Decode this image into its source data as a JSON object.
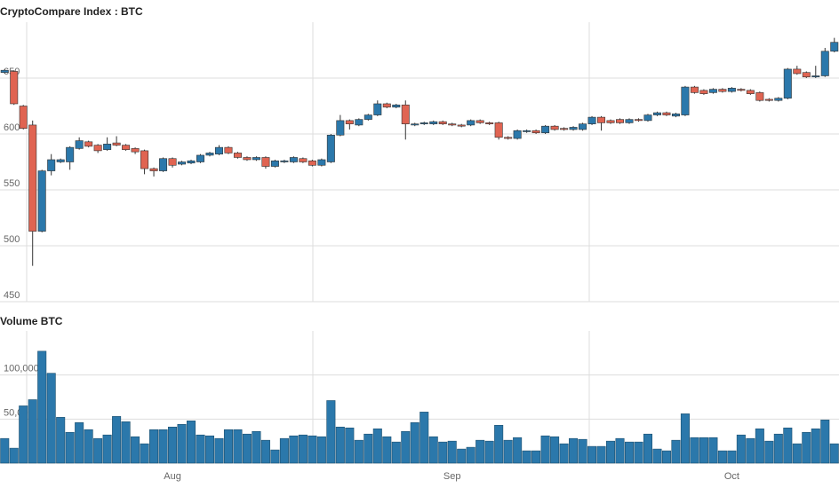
{
  "chart_data": [
    {
      "type": "candlestick",
      "title": "CryptoCompare Index : BTC",
      "open": [
        655,
        656,
        625,
        608,
        513,
        567,
        575,
        575,
        587,
        593,
        590,
        586,
        592,
        590,
        587,
        585,
        569,
        567,
        578,
        573,
        574,
        575,
        581,
        582,
        588,
        583,
        579,
        577,
        579,
        571,
        575,
        575,
        578,
        576,
        572,
        575,
        599,
        612,
        608,
        613,
        617,
        627,
        624,
        626,
        608,
        609,
        609,
        611,
        609,
        608,
        608,
        612,
        610,
        610,
        597,
        596,
        602,
        603,
        601,
        607,
        605,
        604,
        604,
        609,
        615,
        612,
        613,
        610,
        613,
        612,
        617,
        619,
        616,
        617,
        642,
        639,
        637,
        640,
        638,
        640,
        639,
        637,
        631,
        630,
        632,
        658,
        655,
        651,
        652,
        674
      ],
      "high": [
        658,
        657,
        626,
        612,
        568,
        582,
        578,
        589,
        597,
        594,
        591,
        597,
        598,
        591,
        588,
        586,
        570,
        579,
        579,
        576,
        577,
        582,
        584,
        590,
        589,
        584,
        580,
        580,
        580,
        577,
        577,
        580,
        579,
        577,
        578,
        600,
        617,
        613,
        614,
        618,
        630,
        628,
        627,
        630,
        610,
        611,
        612,
        612,
        610,
        609,
        613,
        613,
        611,
        611,
        598,
        604,
        604,
        604,
        608,
        608,
        606,
        607,
        610,
        616,
        616,
        613,
        614,
        614,
        614,
        618,
        620,
        620,
        619,
        643,
        643,
        640,
        641,
        641,
        642,
        641,
        640,
        638,
        632,
        633,
        659,
        661,
        656,
        661,
        677,
        686
      ],
      "low": [
        654,
        626,
        604,
        482,
        512,
        563,
        574,
        568,
        586,
        588,
        583,
        585,
        589,
        585,
        582,
        564,
        562,
        566,
        570,
        572,
        573,
        574,
        580,
        581,
        582,
        578,
        576,
        576,
        569,
        570,
        574,
        574,
        574,
        571,
        571,
        574,
        598,
        604,
        607,
        612,
        616,
        623,
        623,
        595,
        607,
        608,
        608,
        608,
        607,
        606,
        607,
        609,
        608,
        595,
        595,
        595,
        601,
        600,
        600,
        603,
        603,
        603,
        603,
        608,
        603,
        609,
        609,
        609,
        611,
        611,
        616,
        616,
        615,
        616,
        636,
        635,
        636,
        637,
        637,
        638,
        635,
        629,
        629,
        629,
        631,
        653,
        650,
        650,
        651,
        673
      ],
      "close": [
        657,
        627,
        605,
        513,
        567,
        577,
        577,
        588,
        594,
        589,
        585,
        591,
        590,
        586,
        584,
        569,
        567,
        578,
        572,
        575,
        576,
        581,
        583,
        588,
        583,
        579,
        577,
        579,
        571,
        576,
        576,
        579,
        575,
        572,
        577,
        599,
        612,
        609,
        613,
        617,
        627,
        624,
        626,
        609,
        609,
        610,
        611,
        609,
        608,
        607,
        612,
        610,
        609,
        597,
        596,
        603,
        603,
        601,
        607,
        604,
        604,
        606,
        609,
        615,
        610,
        610,
        610,
        613,
        612,
        617,
        619,
        617,
        618,
        642,
        637,
        636,
        640,
        638,
        641,
        639,
        636,
        630,
        630,
        632,
        658,
        654,
        651,
        652,
        674,
        682
      ],
      "up_color": "#2b78ab",
      "down_color": "#e06452",
      "ylim": [
        450,
        700
      ],
      "yticks": [
        450,
        500,
        550,
        600,
        650
      ],
      "grid": true
    },
    {
      "type": "bar",
      "title": "Volume BTC",
      "categories": [
        null,
        null,
        null,
        null,
        null,
        null,
        null,
        null,
        null,
        null,
        null,
        null,
        null,
        null,
        null,
        null,
        null,
        null,
        "Aug",
        null,
        null,
        null,
        null,
        null,
        null,
        null,
        null,
        null,
        null,
        null,
        null,
        null,
        null,
        null,
        null,
        null,
        null,
        null,
        null,
        null,
        null,
        null,
        null,
        null,
        null,
        null,
        null,
        null,
        "Sep",
        null,
        null,
        null,
        null,
        null,
        null,
        null,
        null,
        null,
        null,
        null,
        null,
        null,
        null,
        null,
        null,
        null,
        null,
        null,
        null,
        null,
        null,
        null,
        null,
        null,
        null,
        null,
        null,
        null,
        "Oct",
        null,
        null,
        null,
        null,
        null,
        null,
        null,
        null,
        null,
        null,
        null
      ],
      "values": [
        28000,
        17000,
        65000,
        72000,
        127000,
        102000,
        52000,
        35000,
        46000,
        38000,
        28000,
        32000,
        53000,
        47000,
        30000,
        22000,
        38000,
        38000,
        41000,
        44000,
        48000,
        32000,
        31000,
        28000,
        38000,
        38000,
        33000,
        36000,
        26000,
        15000,
        28000,
        31000,
        32000,
        31000,
        30000,
        71000,
        41000,
        40000,
        26000,
        33000,
        39000,
        30000,
        24000,
        36000,
        46000,
        58000,
        30000,
        24000,
        25000,
        16000,
        18000,
        26000,
        25000,
        43000,
        26000,
        29000,
        14000,
        14000,
        31000,
        30000,
        22000,
        28000,
        27000,
        19000,
        19000,
        25000,
        28000,
        24000,
        24000,
        33000,
        16000,
        14000,
        26000,
        56000,
        29000,
        29000,
        29000,
        14000,
        14000,
        32000,
        28000,
        39000,
        25000,
        33000,
        40000,
        22000,
        35000,
        39000,
        49000,
        22000
      ],
      "color": "#2b78ab",
      "ylim": [
        0,
        150000
      ],
      "yticks": [
        0,
        {
          "value": 50000,
          "label": "50,000"
        },
        {
          "value": 100000,
          "label": "100,000"
        }
      ],
      "grid": true
    }
  ]
}
